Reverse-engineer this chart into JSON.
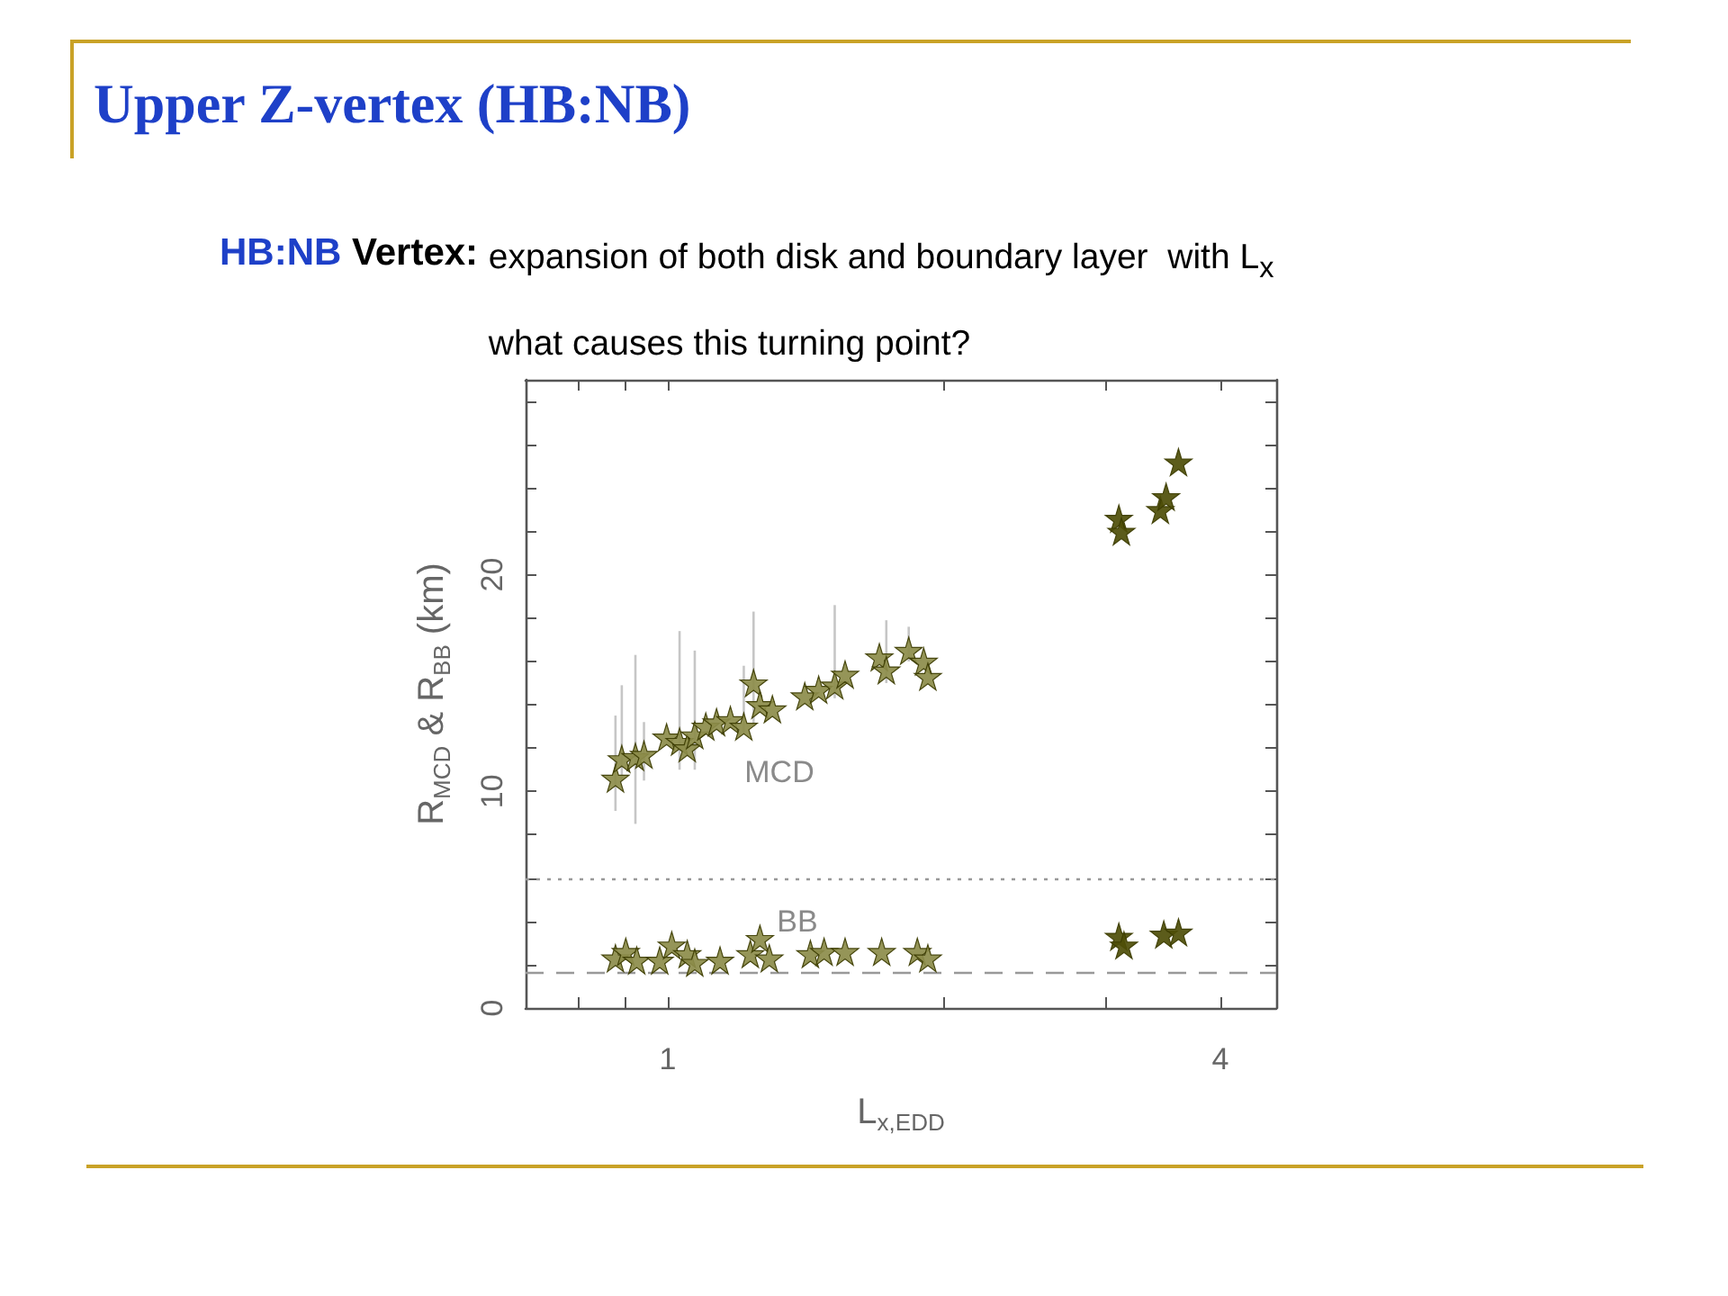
{
  "chart_data": {
    "type": "scatter",
    "title": "Upper Z-vertex (HB:NB)",
    "subtitle": "HB:NB Vertex: expansion of both disk and boundary layer  with L$_{x}$",
    "xlabel": "L$_{x,EDD}$",
    "ylabel": "R$_{MCD}$ & R$_{BB}$ (km)",
    "annotations": [
      "what causes this turning point?",
      "MCD",
      "BB"
    ],
    "log": "x",
    "xlim": [
      0.7,
      4.6
    ],
    "xticks": [
      {
        "value": 0.8,
        "label": null
      },
      {
        "value": 0.9,
        "label": null
      },
      1,
      {
        "value": 2,
        "label": null
      },
      {
        "value": 3,
        "label": null
      },
      4
    ],
    "ylim": [
      0,
      29
    ],
    "yticks": [
      0,
      {
        "value": 2,
        "label": null
      },
      {
        "value": 4,
        "label": null
      },
      {
        "value": 6,
        "label": null
      },
      {
        "value": 8,
        "label": null
      },
      10,
      {
        "value": 12,
        "label": null
      },
      {
        "value": 14,
        "label": null
      },
      {
        "value": 16,
        "label": null
      },
      {
        "value": 18,
        "label": null
      },
      20,
      {
        "value": 22,
        "label": null
      },
      {
        "value": 24,
        "label": null
      },
      {
        "value": 26,
        "label": null
      },
      {
        "value": 28,
        "label": null
      }
    ],
    "marker": "star",
    "ref_lines": [
      {
        "axis": "y",
        "value": 6,
        "line_style": "dotted",
        "color": "#999999"
      },
      {
        "axis": "y",
        "value": 1.6,
        "line_style": "dashed",
        "color": "#999999"
      }
    ],
    "series": [
      {
        "color": "#8c8c4a",
        "x": [
          0.877,
          0.891,
          0.922,
          0.942,
          0.997,
          1.03,
          1.05,
          1.07,
          1.1,
          1.13,
          1.17,
          1.21,
          1.24,
          1.26,
          1.3,
          1.41,
          1.46,
          1.52,
          1.56,
          1.7,
          1.73,
          1.83,
          1.9,
          1.92
        ],
        "values": [
          10.6,
          11.5,
          11.6,
          11.7,
          12.5,
          12.3,
          12.0,
          12.6,
          13.0,
          13.2,
          13.3,
          13.0,
          15.0,
          14.0,
          13.8,
          14.4,
          14.7,
          14.9,
          15.4,
          16.2,
          15.6,
          16.5,
          16.0,
          15.3
        ],
        "errors": [
          [
            9.1,
            13.5
          ],
          [
            10.5,
            14.9
          ],
          [
            8.5,
            16.3
          ],
          [
            10.5,
            13.2
          ],
          null,
          [
            11.0,
            17.4
          ],
          null,
          [
            11.0,
            16.5
          ],
          null,
          null,
          null,
          [
            12.7,
            15.8
          ],
          [
            13.0,
            18.3
          ],
          null,
          null,
          null,
          null,
          [
            14.3,
            18.6
          ],
          null,
          null,
          [
            15.0,
            17.9
          ],
          [
            16.0,
            17.6
          ],
          null,
          null
        ]
      },
      {
        "color": "#4e4e08",
        "x": [
          3.1,
          3.12,
          3.44,
          3.49,
          3.6
        ],
        "values": [
          22.6,
          22.0,
          23.0,
          23.6,
          25.2
        ]
      },
      {
        "color": "#8c8c4a",
        "x": [
          0.877,
          0.9,
          0.925,
          0.98,
          1.01,
          1.05,
          1.07,
          1.14,
          1.23,
          1.26,
          1.29,
          1.43,
          1.48,
          1.56,
          1.71,
          1.87,
          1.92
        ],
        "values": [
          2.3,
          2.6,
          2.2,
          2.2,
          2.9,
          2.5,
          2.1,
          2.2,
          2.5,
          3.2,
          2.3,
          2.5,
          2.6,
          2.6,
          2.6,
          2.6,
          2.3
        ]
      },
      {
        "color": "#4e4e08",
        "x": [
          3.1,
          3.14,
          3.47,
          3.6
        ],
        "values": [
          3.3,
          2.9,
          3.4,
          3.5
        ]
      }
    ]
  }
}
